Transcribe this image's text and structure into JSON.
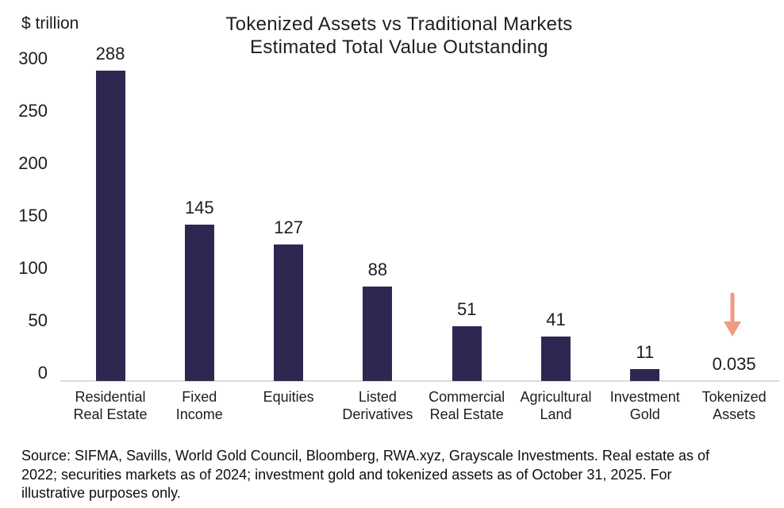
{
  "header": {
    "unit_label": "$ trillion",
    "title_line1": "Tokenized Assets vs Traditional Markets",
    "title_line2": "Estimated Total Value Outstanding"
  },
  "chart_data": {
    "type": "bar",
    "title": "Tokenized Assets vs Traditional Markets",
    "subtitle": "Estimated Total Value Outstanding",
    "ylabel": "$ trillion",
    "xlabel": "",
    "categories": [
      "Residential Real Estate",
      "Fixed Income",
      "Equities",
      "Listed Derivatives",
      "Commercial Real Estate",
      "Agricultural Land",
      "Investment Gold",
      "Tokenized Assets"
    ],
    "category_label_lines": [
      "Residential\nReal Estate",
      "Fixed\nIncome",
      "Equities",
      "Listed\nDerivatives",
      "Commercial\nReal Estate",
      "Agricultural\nLand",
      "Investment\nGold",
      "Tokenized\nAssets"
    ],
    "values": [
      288,
      145,
      127,
      88,
      51,
      41,
      11,
      0.035
    ],
    "value_labels": [
      "288",
      "145",
      "127",
      "88",
      "51",
      "41",
      "11",
      "0.035"
    ],
    "ylim": [
      0,
      300
    ],
    "yticks": [
      0,
      50,
      100,
      150,
      200,
      250,
      300
    ],
    "grid": false,
    "legend_position": "none",
    "bar_color": "#2F2752",
    "axis_line_color": "#dcdcdc",
    "annotation": {
      "icon": "down-arrow",
      "color": "#F09B80",
      "category": "Tokenized Assets"
    }
  },
  "footer": {
    "source_lines": [
      "Source: SIFMA, Savills, World Gold Council, Bloomberg, RWA.xyz, Grayscale Investments. Real estate as of",
      "2022; securities markets as of 2024; investment gold and tokenized assets as of October 31, 2025. For",
      "illustrative purposes only."
    ]
  }
}
